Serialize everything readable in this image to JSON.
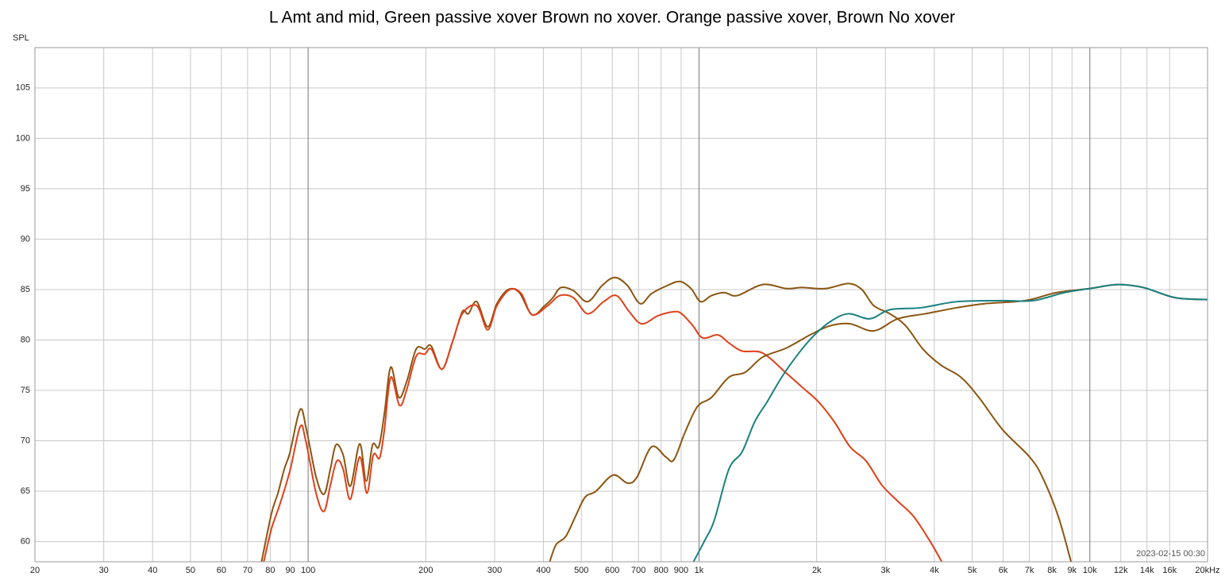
{
  "chart_data": {
    "type": "line",
    "title": "L Amt and mid, Green passive xover Brown no xover. Orange passive xover, Brown No xover",
    "y_label": "SPL",
    "annotation": "2023-02-15 00:30",
    "log_x": true,
    "grid": true,
    "xlim": [
      20,
      20000
    ],
    "ylim": [
      58,
      109
    ],
    "xticks": [
      20,
      30,
      40,
      50,
      60,
      70,
      80,
      90,
      100,
      200,
      300,
      400,
      500,
      600,
      700,
      800,
      900,
      {
        "value": 1000,
        "label": "1k"
      },
      {
        "value": 2000,
        "label": "2k"
      },
      {
        "value": 3000,
        "label": "3k"
      },
      {
        "value": 4000,
        "label": "4k"
      },
      {
        "value": 5000,
        "label": "5k"
      },
      {
        "value": 6000,
        "label": "6k"
      },
      {
        "value": 7000,
        "label": "7k"
      },
      {
        "value": 8000,
        "label": "8k"
      },
      {
        "value": 9000,
        "label": "9k"
      },
      {
        "value": 10000,
        "label": "10k"
      },
      {
        "value": 12000,
        "label": "12k"
      },
      {
        "value": 14000,
        "label": "14k"
      },
      {
        "value": 16000,
        "label": "16k"
      },
      {
        "value": 20000,
        "label": "20kHz"
      }
    ],
    "yticks": [
      60,
      65,
      70,
      75,
      80,
      85,
      90,
      95,
      100,
      105
    ],
    "series": [
      {
        "color": "#8a5510",
        "x": [
          76,
          80.6,
          83.7,
          86.9,
          89.8,
          95.4,
          99,
          104.8,
          109.8,
          114,
          117.8,
          122.9,
          128.2,
          135.5,
          140.8,
          146.2,
          151.6,
          156.7,
          162.7,
          170.6,
          178.8,
          189,
          198.8,
          206.5,
          220,
          234,
          248,
          257,
          270,
          288,
          304,
          325,
          347,
          374,
          403,
          423,
          443,
          477,
          519,
          565,
          609,
          656,
          707,
          756,
          830,
          894,
          954,
          1010,
          1076,
          1160,
          1252,
          1455,
          1673,
          1838,
          2110,
          2410,
          2610,
          2800,
          3077,
          3380,
          3740,
          4160,
          4680,
          5200,
          5980,
          7010,
          7560,
          8300,
          8950
        ],
        "values": [
          58,
          62.8,
          64.8,
          67.2,
          68.8,
          73.1,
          71.1,
          66.4,
          64.7,
          67.2,
          69.6,
          68.6,
          65.5,
          69.7,
          66.0,
          69.6,
          69.4,
          72.7,
          77.3,
          74.3,
          75.9,
          79.1,
          79.1,
          79.4,
          77.1,
          79.8,
          82.8,
          82.6,
          83.8,
          81.3,
          83.6,
          85.0,
          84.7,
          82.5,
          83.4,
          84.2,
          85.2,
          84.9,
          83.8,
          85.4,
          86.2,
          85.4,
          83.6,
          84.6,
          85.4,
          85.8,
          85.1,
          83.8,
          84.4,
          84.7,
          84.4,
          85.5,
          85.1,
          85.2,
          85.1,
          85.6,
          85.0,
          83.4,
          82.6,
          81.4,
          79.1,
          77.5,
          76.3,
          74.3,
          71.1,
          68.4,
          66.4,
          62.5,
          58
        ]
      },
      {
        "color": "#e0401a",
        "x": [
          77,
          80.6,
          84.5,
          89.8,
          95.4,
          98.6,
          104.8,
          109.8,
          114,
          118.4,
          122.9,
          128.2,
          135.5,
          141.4,
          146.8,
          152.4,
          156.7,
          162.7,
          171.4,
          178.8,
          189,
          198.8,
          206.5,
          220,
          234,
          248,
          270,
          288,
          304,
          328,
          351,
          374,
          410,
          440,
          477,
          519,
          570,
          615,
          663,
          714,
          785,
          862,
          903,
          965,
          1022,
          1118,
          1193,
          1289,
          1455,
          1673,
          1838,
          2017,
          2217,
          2435,
          2675,
          2937,
          3225,
          3540,
          3890,
          4180
        ],
        "values": [
          58,
          61.3,
          63.6,
          67.0,
          71.4,
          70.0,
          64.8,
          63.0,
          65.6,
          68.0,
          67.2,
          64.2,
          68.4,
          64.8,
          68.6,
          68.3,
          71.1,
          76.3,
          73.5,
          75.1,
          78.4,
          78.6,
          79.1,
          77.1,
          79.8,
          82.6,
          83.4,
          81.0,
          83.4,
          85.0,
          84.6,
          82.5,
          83.4,
          84.4,
          84.2,
          82.6,
          83.8,
          84.4,
          82.8,
          81.6,
          82.4,
          82.8,
          82.6,
          81.4,
          80.2,
          80.5,
          79.7,
          78.9,
          78.7,
          76.7,
          75.3,
          73.9,
          71.9,
          69.4,
          68.0,
          65.6,
          64.0,
          62.5,
          60.1,
          58
        ]
      },
      {
        "color": "#8a5510",
        "x": [
          415,
          431,
          456,
          483,
          511,
          545,
          603,
          656,
          694,
          756,
          822,
          862,
          920,
          991,
          1076,
          1193,
          1313,
          1455,
          1673,
          1923,
          2163,
          2435,
          2800,
          3225,
          3790,
          4570,
          5380,
          6820,
          8220,
          10000,
          11800,
          13700,
          16500,
          20000
        ],
        "values": [
          58,
          59.7,
          60.5,
          62.5,
          64.4,
          65.0,
          66.6,
          65.8,
          66.4,
          69.4,
          68.4,
          68.1,
          70.8,
          73.4,
          74.3,
          76.3,
          76.8,
          78.3,
          79.2,
          80.5,
          81.4,
          81.6,
          80.9,
          82.1,
          82.6,
          83.2,
          83.6,
          83.9,
          84.7,
          85.1,
          85.5,
          85.2,
          84.2,
          84.0
        ]
      },
      {
        "color": "#1a8080",
        "x": [
          968,
          1034,
          1094,
          1193,
          1289,
          1389,
          1496,
          1627,
          1768,
          1941,
          2163,
          2410,
          2736,
          3077,
          3700,
          4570,
          5920,
          7150,
          8610,
          10000,
          11800,
          13700,
          16500,
          20000
        ],
        "values": [
          58,
          60.1,
          62.1,
          67.2,
          68.9,
          71.9,
          73.9,
          76.3,
          78.3,
          80.2,
          81.8,
          82.6,
          82.1,
          83.0,
          83.2,
          83.8,
          83.9,
          83.9,
          84.7,
          85.1,
          85.5,
          85.2,
          84.2,
          84.0
        ]
      }
    ]
  }
}
